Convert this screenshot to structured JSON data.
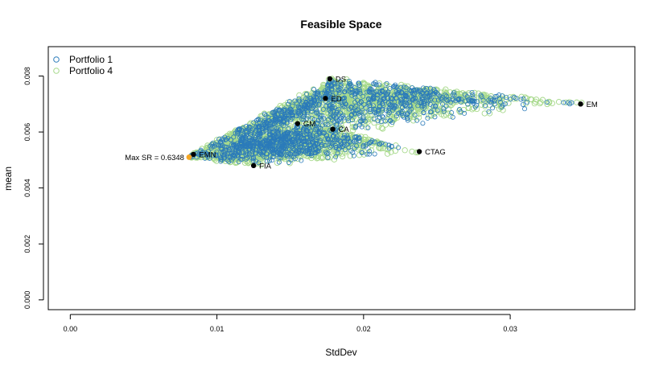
{
  "chart_data": {
    "type": "scatter",
    "title": "Feasible Space",
    "xlabel": "StdDev",
    "ylabel": "mean",
    "xlim": [
      -0.0015,
      0.0385
    ],
    "ylim": [
      -0.00035,
      0.00905
    ],
    "x_ticks": [
      0.0,
      0.01,
      0.02,
      0.03
    ],
    "x_tick_labels": [
      "0.00",
      "0.01",
      "0.02",
      "0.03"
    ],
    "y_ticks": [
      0.0,
      0.002,
      0.004,
      0.006,
      0.008
    ],
    "y_tick_labels": [
      "0.000",
      "0.002",
      "0.004",
      "0.006",
      "0.008"
    ],
    "grid": false,
    "legend": {
      "position": "top-left",
      "entries": [
        {
          "name": "Portfolio 1",
          "color": "#2b7bba",
          "marker": "open-circle"
        },
        {
          "name": "Portfolio 4",
          "color": "#a6d98a",
          "marker": "open-circle"
        }
      ]
    },
    "assets": [
      {
        "name": "DS",
        "x": 0.0177,
        "y": 0.0079
      },
      {
        "name": "ED",
        "x": 0.0174,
        "y": 0.0072
      },
      {
        "name": "EM",
        "x": 0.0348,
        "y": 0.007
      },
      {
        "name": "GM",
        "x": 0.0155,
        "y": 0.0063
      },
      {
        "name": "CA",
        "x": 0.0179,
        "y": 0.0061
      },
      {
        "name": "CTAG",
        "x": 0.0238,
        "y": 0.0053
      },
      {
        "name": "EMN",
        "x": 0.0084,
        "y": 0.0052
      },
      {
        "name": "FIA",
        "x": 0.0125,
        "y": 0.0048
      }
    ],
    "max_sr": {
      "label": "Max SR = 0.6348",
      "x": 0.0081,
      "y": 0.0051,
      "color": "#f5a623"
    },
    "series": [
      {
        "name": "Portfolio 1",
        "color": "#2b7bba",
        "region_summary": "dense random portfolios within the feasible region bounded by the asset points"
      },
      {
        "name": "Portfolio 4",
        "color": "#a6d98a",
        "region_summary": "random portfolios covering the full feasible region"
      }
    ]
  }
}
